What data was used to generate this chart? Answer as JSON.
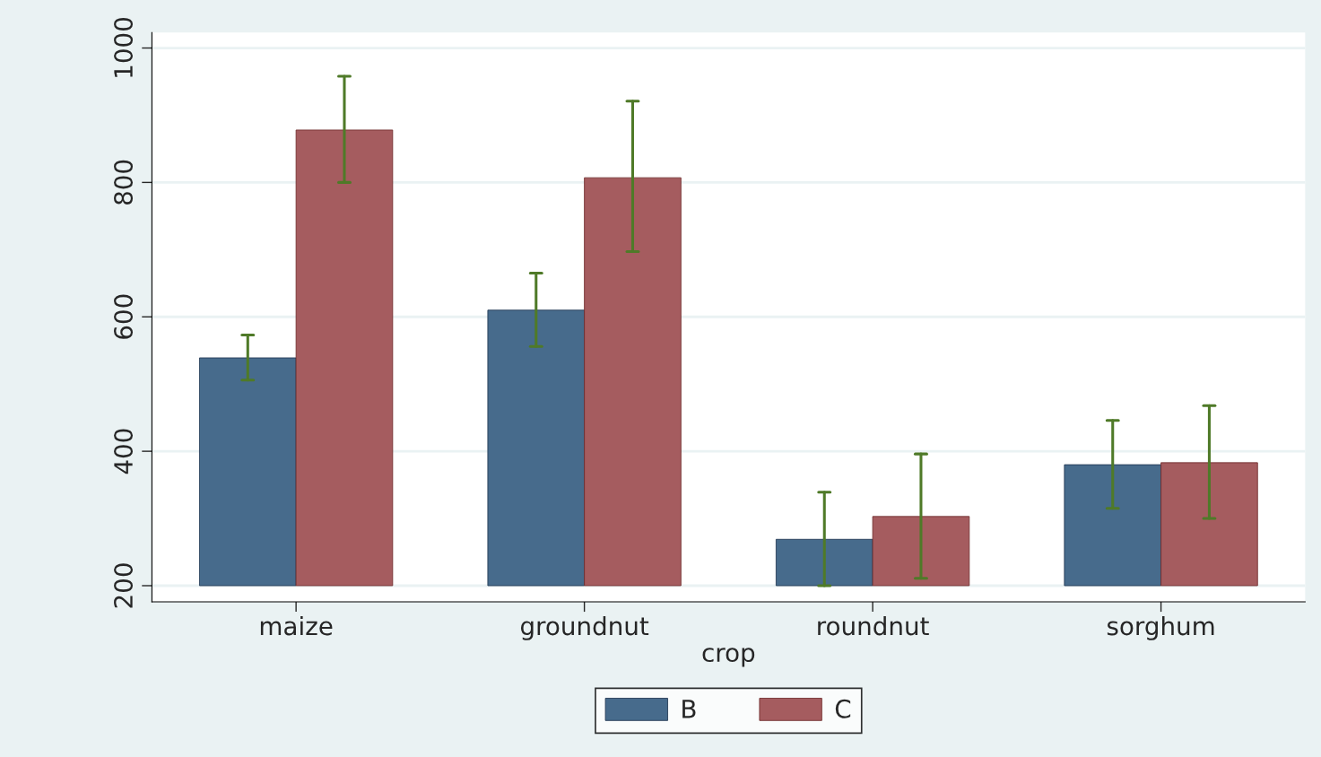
{
  "chart_data": {
    "type": "bar",
    "xlabel": "crop",
    "categories": [
      "maize",
      "groundnut",
      "roundnut",
      "sorghum"
    ],
    "series": [
      {
        "name": "B",
        "color": "#476b8c",
        "base": [
          200,
          200,
          200,
          200
        ],
        "values": [
          339,
          410,
          69,
          180
        ],
        "errors": [
          [
            506,
            573
          ],
          [
            556,
            665
          ],
          [
            200,
            339
          ],
          [
            315,
            446
          ]
        ]
      },
      {
        "name": "C",
        "color": "#a55c5f",
        "base": [
          200,
          200,
          200,
          200
        ],
        "values": [
          678,
          607,
          103,
          183
        ],
        "errors": [
          [
            800,
            958
          ],
          [
            697,
            921
          ],
          [
            211,
            396
          ],
          [
            300,
            468
          ]
        ]
      }
    ],
    "ylim": [
      176,
      1023
    ],
    "yticks": [
      200,
      400,
      600,
      800,
      1000
    ],
    "grid": "y",
    "legend": "bottom"
  }
}
